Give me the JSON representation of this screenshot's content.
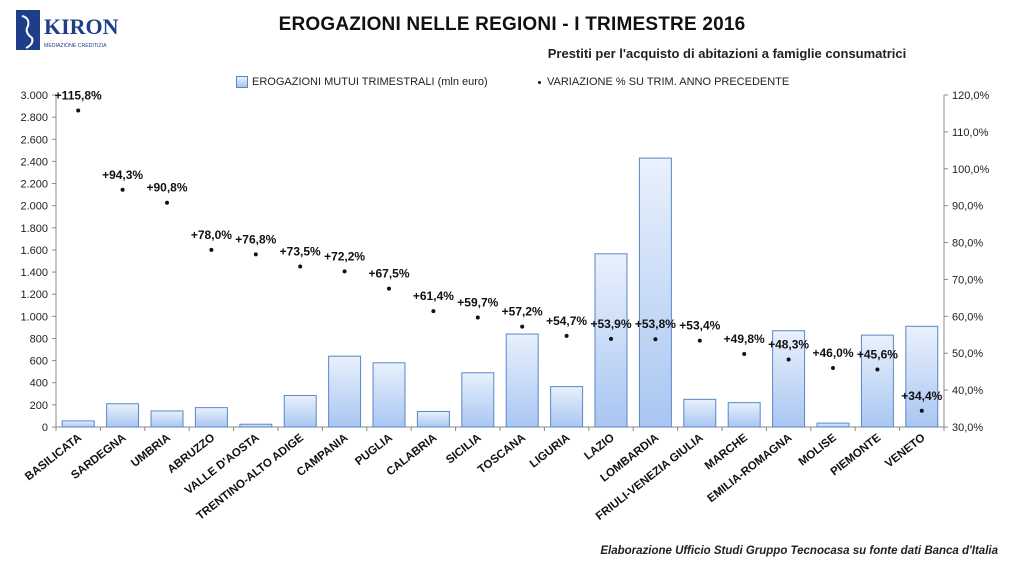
{
  "header": {
    "logo_text": "KIRON",
    "logo_tagline": "MEDIAZIONE CREDITIZIA",
    "title": "EROGAZIONI NELLE REGIONI - I TRIMESTRE 2016",
    "subtitle": "Prestiti per l'acquisto di abitazioni a famiglie consumatrici"
  },
  "footer": {
    "source": "Elaborazione Ufficio Studi Gruppo Tecnocasa su fonte dati Banca d'Italia"
  },
  "colors": {
    "bar_fill_top": "#e9f1fc",
    "bar_fill_bottom": "#a9c6f2",
    "bar_stroke": "#5a86c7",
    "dot": "#111111",
    "logo": "#1f3e8a"
  },
  "chart_data": {
    "type": "bar",
    "legend_position": "top",
    "grid": false,
    "categories": [
      "BASILICATA",
      "SARDEGNA",
      "UMBRIA",
      "ABRUZZO",
      "VALLE D'AOSTA",
      "TRENTINO-ALTO ADIGE",
      "CAMPANIA",
      "PUGLIA",
      "CALABRIA",
      "SICILIA",
      "TOSCANA",
      "LIGURIA",
      "LAZIO",
      "LOMBARDIA",
      "FRIULI-VENEZIA GIULIA",
      "MARCHE",
      "EMILIA-ROMAGNA",
      "MOLISE",
      "PIEMONTE",
      "VENETO"
    ],
    "series": [
      {
        "name": "EROGAZIONI MUTUI TRIMESTRALI (mln euro)",
        "type": "bar",
        "axis": "left",
        "values": [
          55,
          210,
          145,
          175,
          25,
          285,
          640,
          580,
          140,
          490,
          840,
          365,
          1565,
          2430,
          250,
          220,
          870,
          35,
          830,
          910
        ]
      },
      {
        "name": "VARIAZIONE % SU TRIM. ANNO PRECEDENTE",
        "type": "scatter",
        "axis": "right",
        "values": [
          115.8,
          94.3,
          90.8,
          78.0,
          76.8,
          73.5,
          72.2,
          67.5,
          61.4,
          59.7,
          57.2,
          54.7,
          53.9,
          53.8,
          53.4,
          49.8,
          48.3,
          46.0,
          45.6,
          34.4
        ],
        "labels": [
          "+115,8%",
          "+94,3%",
          "+90,8%",
          "+78,0%",
          "+76,8%",
          "+73,5%",
          "+72,2%",
          "+67,5%",
          "+61,4%",
          "+59,7%",
          "+57,2%",
          "+54,7%",
          "+53,9%",
          "+53,8%",
          "+53,4%",
          "+49,8%",
          "+48,3%",
          "+46,0%",
          "+45,6%",
          "+34,4%"
        ]
      }
    ],
    "y_left": {
      "min": 0,
      "max": 3000,
      "ticks": [
        0,
        200,
        400,
        600,
        800,
        1000,
        1200,
        1400,
        1600,
        1800,
        2000,
        2200,
        2400,
        2600,
        2800,
        3000
      ],
      "tick_labels": [
        "0",
        "200",
        "400",
        "600",
        "800",
        "1.000",
        "1.200",
        "1.400",
        "1.600",
        "1.800",
        "2.000",
        "2.200",
        "2.400",
        "2.600",
        "2.800",
        "3.000"
      ]
    },
    "y_right": {
      "min": 30,
      "max": 120,
      "ticks": [
        30,
        40,
        50,
        60,
        70,
        80,
        90,
        100,
        110,
        120
      ],
      "tick_labels": [
        "30,0%",
        "40,0%",
        "50,0%",
        "60,0%",
        "70,0%",
        "80,0%",
        "90,0%",
        "100,0%",
        "110,0%",
        "120,0%"
      ]
    }
  }
}
